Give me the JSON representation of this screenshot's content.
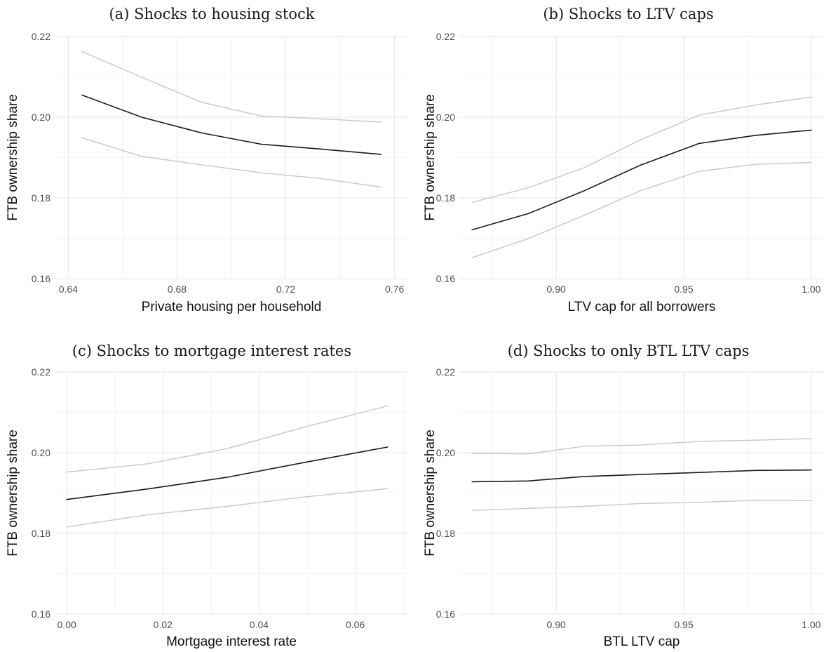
{
  "chart_data": [
    {
      "type": "line",
      "title": "(a) Shocks to housing stock",
      "xlabel": "Private housing per household",
      "ylabel": "FTB ownership share",
      "xlim": [
        0.635,
        0.765
      ],
      "ylim": [
        0.16,
        0.22
      ],
      "xticks": [
        0.64,
        0.68,
        0.72,
        0.76
      ],
      "xtick_labels": [
        "0.64",
        "0.68",
        "0.72",
        "0.76"
      ],
      "yticks": [
        0.16,
        0.18,
        0.2,
        0.22
      ],
      "ytick_labels": [
        "0.16",
        "0.18",
        "0.20",
        "0.22"
      ],
      "grid": true,
      "series": [
        {
          "role": "upper",
          "color": "#c8c8c8",
          "x": [
            0.645,
            0.667,
            0.689,
            0.711,
            0.733,
            0.755
          ],
          "y": [
            0.2163,
            0.2099,
            0.2037,
            0.2003,
            0.1996,
            0.1988
          ]
        },
        {
          "role": "estimate",
          "color": "#1a1a1a",
          "x": [
            0.645,
            0.667,
            0.689,
            0.711,
            0.733,
            0.755
          ],
          "y": [
            0.2055,
            0.2,
            0.1961,
            0.1933,
            0.1921,
            0.1908
          ]
        },
        {
          "role": "lower",
          "color": "#c8c8c8",
          "x": [
            0.645,
            0.667,
            0.689,
            0.711,
            0.733,
            0.755
          ],
          "y": [
            0.1949,
            0.1903,
            0.1882,
            0.1862,
            0.1848,
            0.1827
          ]
        }
      ]
    },
    {
      "type": "line",
      "title": "(b) Shocks to LTV caps",
      "xlabel": "LTV cap for all borrowers",
      "ylabel": "FTB ownership share",
      "xlim": [
        0.862,
        1.005
      ],
      "ylim": [
        0.16,
        0.22
      ],
      "xticks": [
        0.9,
        0.95,
        1.0
      ],
      "xtick_labels": [
        "0.90",
        "0.95",
        "1.00"
      ],
      "yticks": [
        0.16,
        0.18,
        0.2,
        0.22
      ],
      "ytick_labels": [
        "0.16",
        "0.18",
        "0.20",
        "0.22"
      ],
      "grid": true,
      "series": [
        {
          "role": "upper",
          "color": "#c8c8c8",
          "x": [
            0.867,
            0.889,
            0.911,
            0.933,
            0.956,
            0.978,
            1.0
          ],
          "y": [
            0.1789,
            0.1825,
            0.1875,
            0.1944,
            0.2005,
            0.203,
            0.205
          ]
        },
        {
          "role": "estimate",
          "color": "#1a1a1a",
          "x": [
            0.867,
            0.889,
            0.911,
            0.933,
            0.956,
            0.978,
            1.0
          ],
          "y": [
            0.1721,
            0.1761,
            0.1818,
            0.1881,
            0.1935,
            0.1955,
            0.1968
          ]
        },
        {
          "role": "lower",
          "color": "#c8c8c8",
          "x": [
            0.867,
            0.889,
            0.911,
            0.933,
            0.956,
            0.978,
            1.0
          ],
          "y": [
            0.1652,
            0.1699,
            0.1757,
            0.1818,
            0.1866,
            0.1883,
            0.1888
          ]
        }
      ]
    },
    {
      "type": "line",
      "title": "(c) Shocks to mortgage interest rates",
      "xlabel": "Mortgage interest rate",
      "ylabel": "FTB ownership share",
      "xlim": [
        -0.0025,
        0.071
      ],
      "ylim": [
        0.16,
        0.22
      ],
      "xticks": [
        0.0,
        0.02,
        0.04,
        0.06
      ],
      "xtick_labels": [
        "0.00",
        "0.02",
        "0.04",
        "0.06"
      ],
      "yticks": [
        0.16,
        0.18,
        0.2,
        0.22
      ],
      "ytick_labels": [
        "0.16",
        "0.18",
        "0.20",
        "0.22"
      ],
      "grid": true,
      "series": [
        {
          "role": "upper",
          "color": "#c8c8c8",
          "x": [
            0.0,
            0.0167,
            0.0333,
            0.05,
            0.0667
          ],
          "y": [
            0.1952,
            0.1972,
            0.201,
            0.2065,
            0.2116
          ]
        },
        {
          "role": "estimate",
          "color": "#1a1a1a",
          "x": [
            0.0,
            0.0167,
            0.0333,
            0.05,
            0.0667
          ],
          "y": [
            0.1884,
            0.191,
            0.1939,
            0.1977,
            0.2014
          ]
        },
        {
          "role": "lower",
          "color": "#c8c8c8",
          "x": [
            0.0,
            0.0167,
            0.0333,
            0.05,
            0.0667
          ],
          "y": [
            0.1816,
            0.1846,
            0.1867,
            0.1891,
            0.1911
          ]
        }
      ]
    },
    {
      "type": "line",
      "title": "(d) Shocks to only BTL LTV caps",
      "xlabel": "BTL LTV cap",
      "ylabel": "FTB ownership share",
      "xlim": [
        0.862,
        1.005
      ],
      "ylim": [
        0.16,
        0.22
      ],
      "xticks": [
        0.9,
        0.95,
        1.0
      ],
      "xtick_labels": [
        "0.90",
        "0.95",
        "1.00"
      ],
      "yticks": [
        0.16,
        0.18,
        0.2,
        0.22
      ],
      "ytick_labels": [
        "0.16",
        "0.18",
        "0.20",
        "0.22"
      ],
      "grid": true,
      "series": [
        {
          "role": "upper",
          "color": "#c8c8c8",
          "x": [
            0.867,
            0.889,
            0.911,
            0.933,
            0.956,
            0.978,
            1.0
          ],
          "y": [
            0.1998,
            0.1997,
            0.2016,
            0.2019,
            0.2028,
            0.2031,
            0.2035
          ]
        },
        {
          "role": "estimate",
          "color": "#1a1a1a",
          "x": [
            0.867,
            0.889,
            0.911,
            0.933,
            0.956,
            0.978,
            1.0
          ],
          "y": [
            0.1928,
            0.193,
            0.1941,
            0.1946,
            0.1951,
            0.1956,
            0.1957
          ]
        },
        {
          "role": "lower",
          "color": "#c8c8c8",
          "x": [
            0.867,
            0.889,
            0.911,
            0.933,
            0.956,
            0.978,
            1.0
          ],
          "y": [
            0.1857,
            0.1862,
            0.1867,
            0.1874,
            0.1877,
            0.1882,
            0.1881
          ]
        }
      ]
    }
  ]
}
